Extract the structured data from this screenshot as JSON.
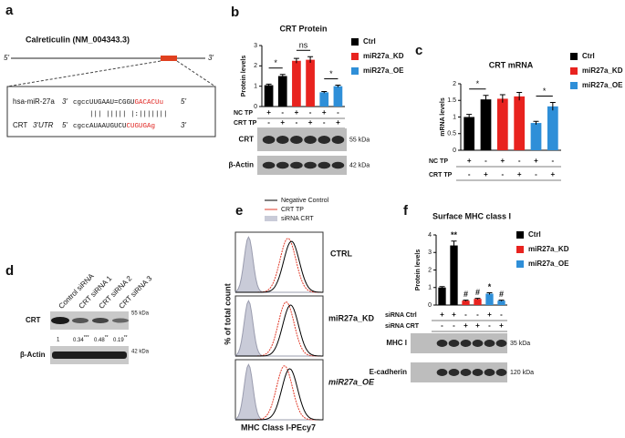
{
  "panel_letters": [
    "a",
    "b",
    "c",
    "d",
    "e",
    "f"
  ],
  "panel_a": {
    "gene": "Calreticulin (NM_004343.3)",
    "gene_5": "5'",
    "gene_3": "3'",
    "mirna_name": "hsa-miR-27a",
    "mirna_left": "3'",
    "mirna_seq_black": "cgccUUGAAU=CGGU",
    "mirna_seq_red": "GACACUu",
    "mirna_right": "5'",
    "pairing": "|||  ||||| |:|||||||",
    "target_name": "CRT",
    "target_utr": "3'UTR",
    "target_left": "5'",
    "target_seq_black": "cgccAUAAUGUCU",
    "target_seq_red": "CUGUGAg",
    "target_right": "3'"
  },
  "chart_data": [
    {
      "type": "bar",
      "title": "CRT Protein",
      "ylabel": "Protein levels",
      "ylim": [
        0,
        3
      ],
      "yticks": [
        0,
        1,
        2,
        3
      ],
      "series": [
        {
          "name": "Ctrl",
          "color": "#000000",
          "values": [
            1.05,
            1.5
          ],
          "errors": [
            0.05,
            0.08
          ]
        },
        {
          "name": "miR27a_KD",
          "color": "#e8231f",
          "values": [
            2.25,
            2.3
          ],
          "errors": [
            0.12,
            0.15
          ]
        },
        {
          "name": "miR27a_OE",
          "color": "#2f8fd8",
          "values": [
            0.7,
            1.0
          ],
          "errors": [
            0.04,
            0.05
          ]
        }
      ],
      "annotations": [
        "*",
        "ns",
        "*"
      ],
      "conditions": [
        {
          "label": "NC TP",
          "signs": [
            "+",
            "-",
            "+",
            "-",
            "+",
            "-"
          ]
        },
        {
          "label": "CRT TP",
          "signs": [
            "-",
            "+",
            "-",
            "+",
            "-",
            "+"
          ]
        }
      ],
      "blots": [
        {
          "label": "CRT",
          "size": "55 kDa"
        },
        {
          "label": "β-Actin",
          "size": "42 kDa"
        }
      ]
    },
    {
      "type": "bar",
      "title": "CRT mRNA",
      "ylabel": "mRNA levels",
      "ylim": [
        0,
        2
      ],
      "yticks": [
        0,
        0.5,
        1,
        1.5,
        2
      ],
      "series": [
        {
          "name": "Ctrl",
          "color": "#000000",
          "values": [
            1.0,
            1.53
          ],
          "errors": [
            0.08,
            0.12
          ]
        },
        {
          "name": "miR27a_KD",
          "color": "#e8231f",
          "values": [
            1.55,
            1.62
          ],
          "errors": [
            0.12,
            0.12
          ]
        },
        {
          "name": "miR27a_OE",
          "color": "#2f8fd8",
          "values": [
            0.82,
            1.32
          ],
          "errors": [
            0.05,
            0.12
          ]
        }
      ],
      "annotations": [
        "*",
        "*"
      ],
      "conditions": [
        {
          "label": "NC TP",
          "signs": [
            "+",
            "-",
            "+",
            "-",
            "+",
            "-"
          ]
        },
        {
          "label": "CRT TP",
          "signs": [
            "-",
            "+",
            "-",
            "+",
            "-",
            "+"
          ]
        }
      ]
    },
    {
      "type": "bar",
      "title": "Surface MHC class I",
      "ylabel": "Protein levels",
      "ylim": [
        0,
        4
      ],
      "yticks": [
        0,
        1,
        2,
        3,
        4
      ],
      "series": [
        {
          "name": "Ctrl",
          "color": "#000000",
          "values": [
            1.0,
            3.4
          ],
          "errors": [
            0.05,
            0.25
          ]
        },
        {
          "name": "miR27a_KD",
          "color": "#e8231f",
          "values": [
            0.25,
            0.35
          ],
          "errors": [
            0.03,
            0.03
          ]
        },
        {
          "name": "miR27a_OE",
          "color": "#2f8fd8",
          "values": [
            0.65,
            0.25
          ],
          "errors": [
            0.05,
            0.03
          ]
        }
      ],
      "bar_annotations": [
        null,
        "**",
        "#",
        "#",
        "*",
        "#"
      ],
      "conditions": [
        {
          "label": "siRNA Ctrl",
          "signs": [
            "+",
            "+",
            "-",
            "-",
            "+",
            "-"
          ]
        },
        {
          "label": "siRNA CRT",
          "signs": [
            "-",
            "-",
            "+",
            "+",
            "-",
            "+"
          ]
        }
      ],
      "blots": [
        {
          "label": "MHC I",
          "size": "35 kDa"
        },
        {
          "label": "E-cadherin",
          "size": "120 kDa"
        }
      ]
    }
  ],
  "panel_d": {
    "lanes": [
      "Control siRNA",
      "CRT siRNA 1",
      "CRT siRNA 2",
      "CRT siRNA 3"
    ],
    "blots": [
      {
        "label": "CRT",
        "size": "55 kDa"
      },
      {
        "label": "β-Actin",
        "size": "42 kDa"
      }
    ],
    "quant": [
      "1",
      "0.34",
      "0.48",
      "0.19"
    ],
    "stars": [
      null,
      "***",
      "**",
      "**"
    ]
  },
  "panel_e": {
    "legend": [
      "Negative Control",
      "CRT TP",
      "siRNA CRT"
    ],
    "rows": [
      "CTRL",
      "miR27a_KD",
      "miR27a_OE"
    ],
    "ylabel": "% of total count",
    "xlabel": "MHC Class I-PEcy7"
  }
}
